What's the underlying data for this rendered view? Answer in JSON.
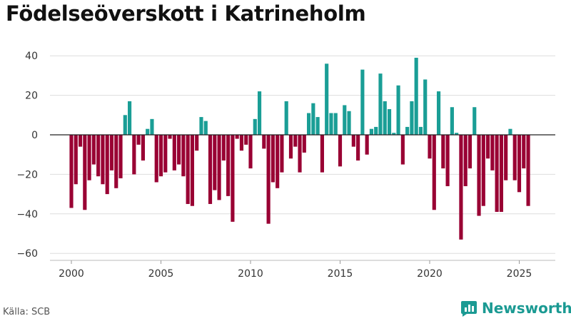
{
  "chart_data": {
    "type": "bar",
    "title": "Födelseöverskott i Katrineholm",
    "xlabel": "",
    "ylabel": "",
    "ylim": [
      -60,
      45
    ],
    "xlim": [
      1999.0,
      2026.2
    ],
    "yticks": [
      40,
      20,
      0,
      -20,
      -40,
      -60
    ],
    "ytick_labels": [
      "40",
      "20",
      "0",
      "−20",
      "−40",
      "−60"
    ],
    "xticks": [
      2000,
      2005,
      2010,
      2015,
      2020,
      2025
    ],
    "xtick_labels": [
      "2000",
      "2005",
      "2010",
      "2015",
      "2020",
      "2025"
    ],
    "grid": true,
    "positive_color": "#1a9e96",
    "negative_color": "#990033",
    "start": {
      "year": 2000,
      "quarter": 1
    },
    "values": [
      -37,
      -25,
      -6,
      -38,
      -23,
      -15,
      -21,
      -25,
      -30,
      -18,
      -27,
      -22,
      10,
      17,
      -20,
      -5,
      -13,
      3,
      8,
      -24,
      -21,
      -19,
      -2,
      -18,
      -15,
      -21,
      -35,
      -36,
      -8,
      9,
      7,
      -35,
      -28,
      -33,
      -13,
      -31,
      -44,
      -2,
      -8,
      -5,
      -17,
      8,
      22,
      -7,
      -45,
      -24,
      -27,
      -19,
      17,
      -12,
      -6,
      -19,
      -9,
      11,
      16,
      9,
      -19,
      36,
      11,
      11,
      -16,
      15,
      12,
      -6,
      -13,
      33,
      -10,
      3,
      4,
      31,
      17,
      13,
      1,
      25,
      -15,
      4,
      17,
      39,
      4,
      28,
      -12,
      -38,
      22,
      -17,
      -26,
      14,
      1,
      -53,
      -26,
      -17,
      14,
      -41,
      -36,
      -12,
      -18,
      -39,
      -39,
      -23,
      3,
      -23,
      -29,
      -17,
      -36
    ]
  },
  "source": {
    "text": "Källa: SCB"
  },
  "brand": {
    "name": "Newsworthy"
  },
  "colors": {
    "brand": "#1b9a93"
  }
}
